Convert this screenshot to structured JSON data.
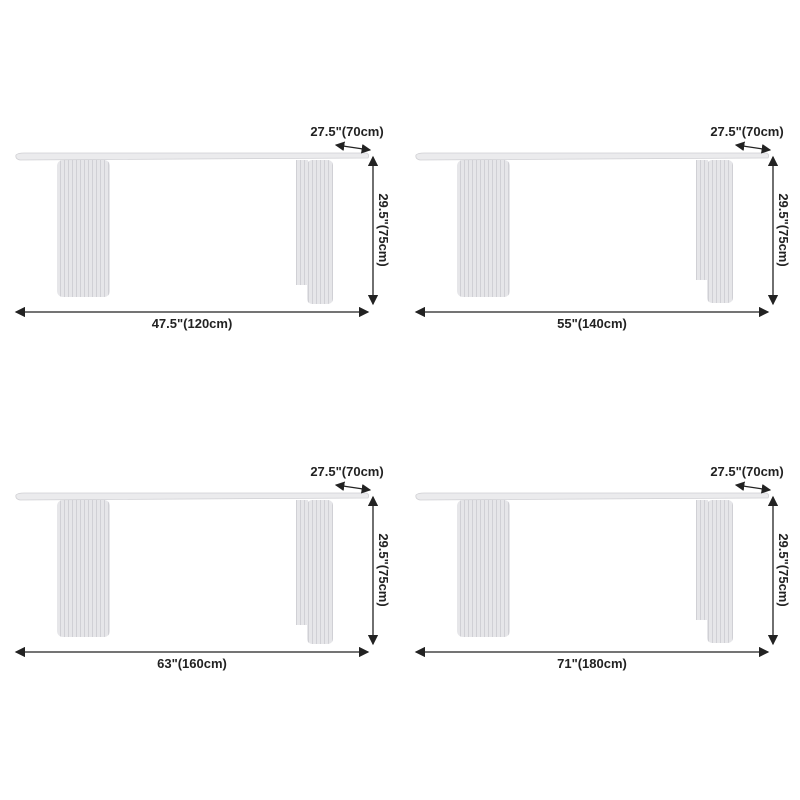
{
  "panels": [
    {
      "width_label": "47.5\"(120cm)",
      "depth_label": "27.5\"(70cm)",
      "height_label": "29.5\"(75cm)"
    },
    {
      "width_label": "55\"(140cm)",
      "depth_label": "27.5\"(70cm)",
      "height_label": "29.5\"(75cm)"
    },
    {
      "width_label": "63\"(160cm)",
      "depth_label": "27.5\"(70cm)",
      "height_label": "29.5\"(75cm)"
    },
    {
      "width_label": "71\"(180cm)",
      "depth_label": "27.5\"(70cm)",
      "height_label": "29.5\"(75cm)"
    }
  ],
  "colors": {
    "table": "#e4e4e6",
    "table_shade": "#d2d2d6",
    "arrow": "#222222"
  }
}
